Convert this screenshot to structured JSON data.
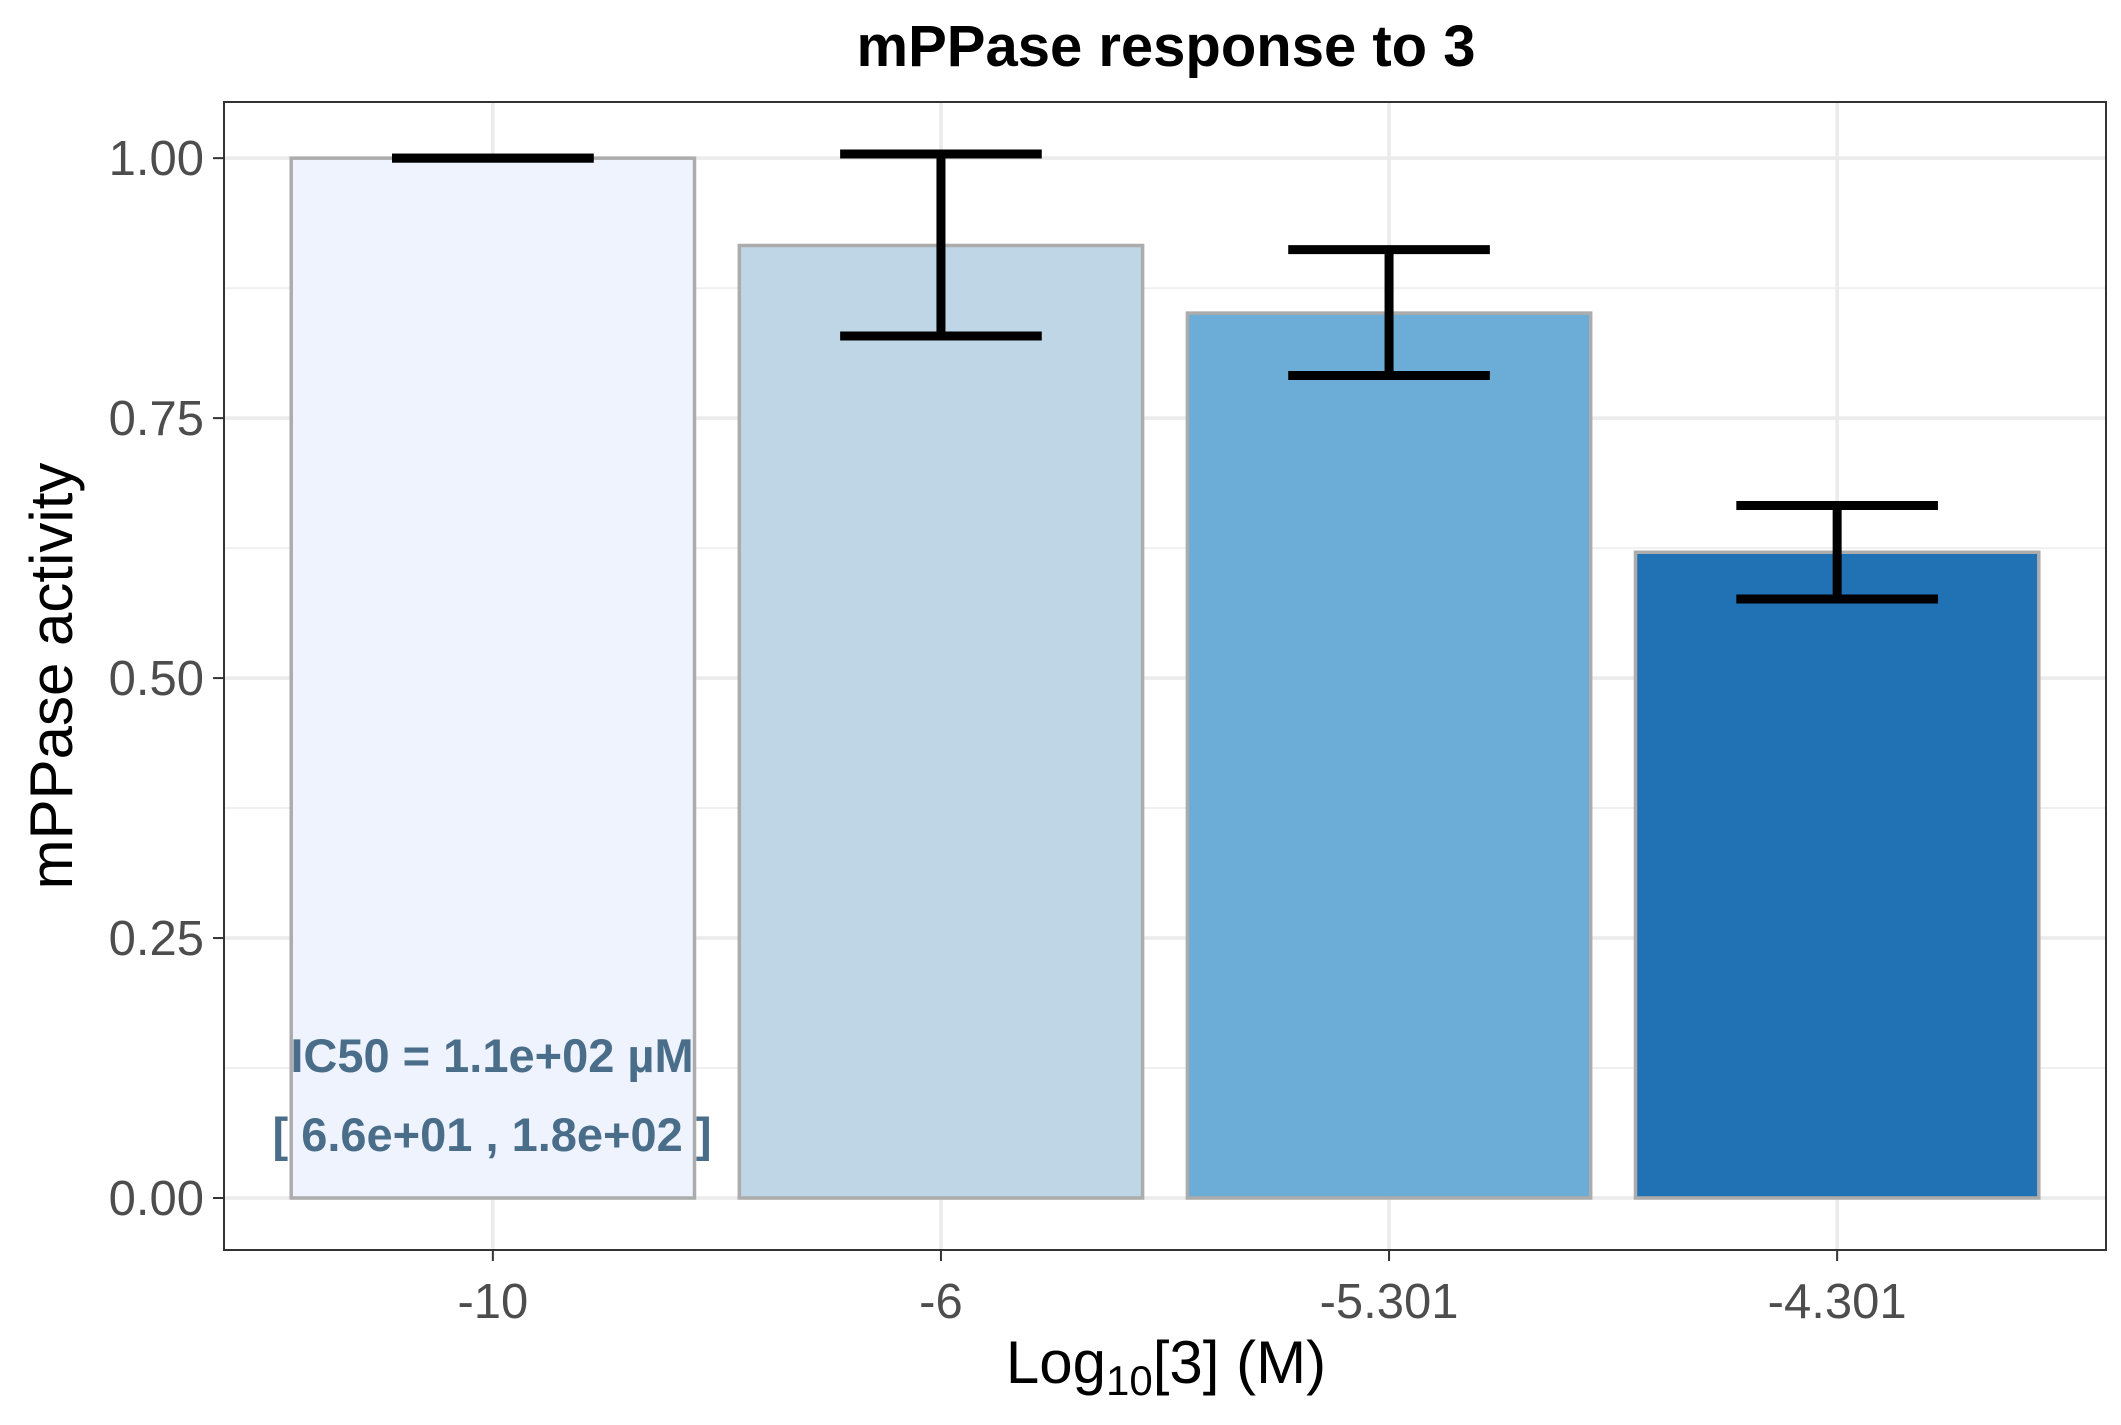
{
  "chart_data": {
    "type": "bar",
    "title": "mPPase response to 3",
    "xlabel": {
      "prefix": "Log",
      "subscript": "10",
      "suffix": "[3] (M)"
    },
    "ylabel": "mPPase activity",
    "categories": [
      "-10",
      "-6",
      "-5.301",
      "-4.301"
    ],
    "values": [
      1.0,
      0.916,
      0.851,
      0.621
    ],
    "error_low": [
      1.0,
      0.829,
      0.791,
      0.576
    ],
    "error_high": [
      1.0,
      1.004,
      0.912,
      0.666
    ],
    "bar_colors": [
      "#eef3fd",
      "#bfd6e6",
      "#6badd6",
      "#2171b5"
    ],
    "ylim": [
      -0.05,
      1.054
    ],
    "yticks": [
      "0.00",
      "0.25",
      "0.50",
      "0.75",
      "1.00"
    ],
    "grid": true,
    "annotation": {
      "line1": "IC50 = 1.1e+02 µM",
      "line2": "[ 6.6e+01 , 1.8e+02 ]"
    }
  }
}
